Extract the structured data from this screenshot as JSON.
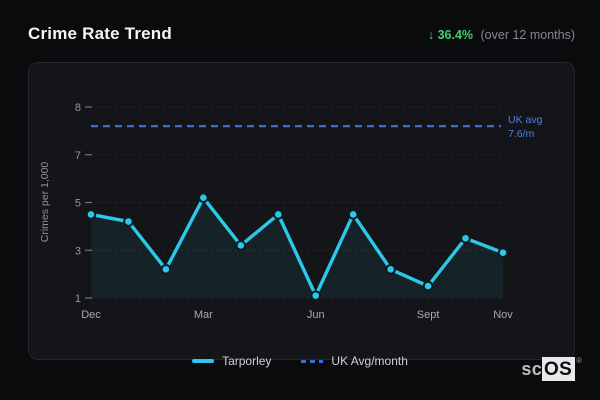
{
  "header": {
    "title": "Crime Rate Trend",
    "trend_arrow": "↓",
    "trend_value": "36.4%",
    "trend_period": "(over 12 months)"
  },
  "colors": {
    "accent_cyan": "#2cc8e8",
    "accent_blue": "#3d6cd6",
    "reference_label_blue": "#4b80e2",
    "trend_green": "#3ecf6e",
    "card_bg": "#141519",
    "page_bg": "#0a0b0d"
  },
  "chart_data": {
    "type": "line",
    "title": "Crime Rate Trend",
    "ylabel": "Crimes per 1,000",
    "xlabel": "",
    "ylim": [
      1,
      8
    ],
    "y_ticks": [
      8,
      7,
      5,
      3,
      1
    ],
    "grid": "horizontal dashed",
    "legend_position": "bottom",
    "points_count": 12,
    "x_tick_labels": [
      "Dec",
      "Mar",
      "Jun",
      "Sept",
      "Nov"
    ],
    "x_tick_indices": [
      0,
      3,
      6,
      9,
      11
    ],
    "series": [
      {
        "name": "Tarporley",
        "style": "solid",
        "color": "#2cc8e8",
        "values": [
          4.5,
          4.2,
          2.2,
          5.2,
          3.2,
          4.5,
          1.1,
          4.5,
          2.2,
          1.5,
          3.5,
          2.9
        ]
      },
      {
        "name": "UK Avg/month",
        "style": "dashed",
        "color": "#3d6cd6",
        "constant_value": 7.6
      }
    ],
    "reference_line": {
      "value": 7.6,
      "label_line1": "UK avg",
      "label_line2": "7.6/m"
    }
  },
  "legend": {
    "items": [
      {
        "label": "Tarporley",
        "swatch": "solid-cyan"
      },
      {
        "label": "UK Avg/month",
        "swatch": "dashed-blue"
      }
    ]
  },
  "logo": {
    "prefix": "sc",
    "suffix": "OS",
    "mark": "®"
  }
}
